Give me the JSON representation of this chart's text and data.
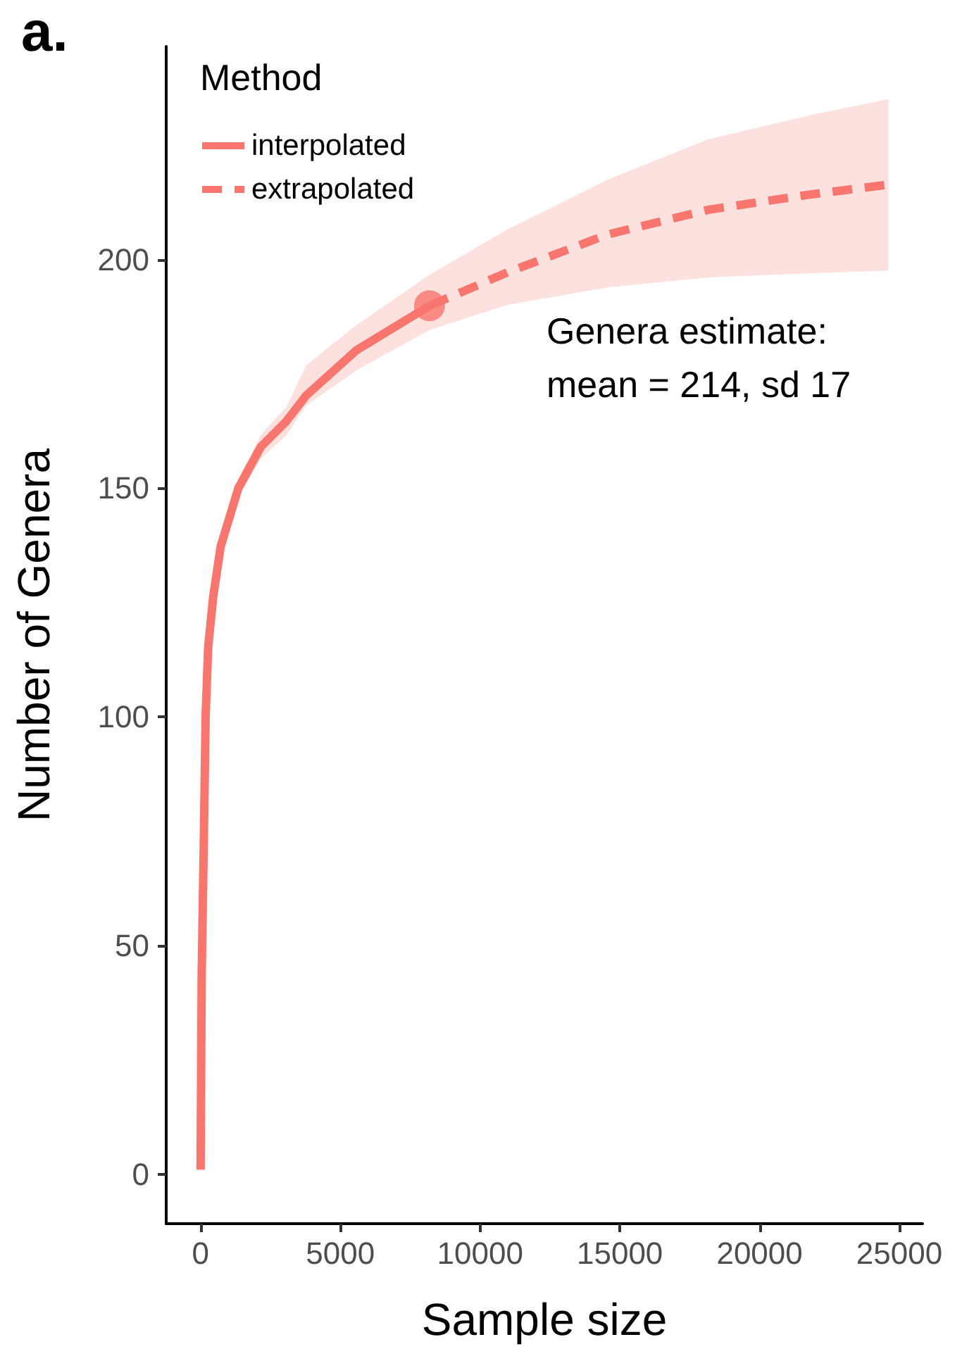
{
  "chart_data": {
    "type": "line",
    "title": "a.",
    "legend_title": "Method",
    "xlabel": "Sample size",
    "ylabel": "Number of Genera",
    "xlim": [
      -1230,
      25830
    ],
    "ylim": [
      -10.8,
      246.6
    ],
    "xticks": [
      0,
      5000,
      10000,
      15000,
      20000,
      25000
    ],
    "yticks": [
      0,
      50,
      100,
      150,
      200
    ],
    "grid": false,
    "legend": "top left",
    "annotations": [
      "Genera estimate:\nmean = 214, sd 17"
    ],
    "series": [
      {
        "name": "interpolated",
        "color": "#f8766d",
        "line_style": "solid",
        "x": [
          0,
          40,
          125,
          180,
          270,
          450,
          720,
          1350,
          2160,
          3060,
          3780,
          5580,
          8190
        ],
        "values": [
          1,
          43.9,
          76.8,
          100,
          115.2,
          126.2,
          137.3,
          150,
          159.1,
          164.6,
          170.3,
          180.2,
          189.9
        ],
        "lower": [
          1,
          43.4,
          76.2,
          99.3,
          114.4,
          125.2,
          136.1,
          148,
          156.5,
          161.5,
          168.1,
          175.8,
          184.6
        ],
        "upper": [
          1,
          44.4,
          77.4,
          100.7,
          116,
          127.2,
          138.5,
          152,
          161.7,
          167.7,
          176.9,
          185.7,
          196.7
        ]
      },
      {
        "name": "extrapolated",
        "color": "#f8766d",
        "line_style": "dashed",
        "x": [
          8190,
          10980,
          14570,
          18170,
          21770,
          24610
        ],
        "values": [
          189.9,
          197.2,
          205.5,
          210.9,
          214.2,
          216.4
        ],
        "lower": [
          184.6,
          190.1,
          193.9,
          196.1,
          197,
          197.6
        ],
        "upper": [
          196.7,
          206.6,
          217.5,
          226.3,
          231.5,
          235.1
        ]
      },
      {
        "type": "scatter",
        "color": "#f8766d",
        "marker": "circle",
        "x": [
          8190
        ],
        "values": [
          189.9
        ]
      }
    ]
  }
}
